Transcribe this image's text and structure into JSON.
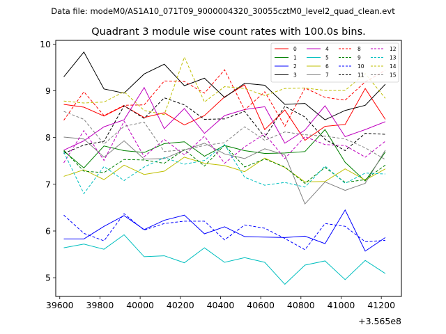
{
  "header": {
    "data_file": "Data file: modeM0/AS1A10_071T09_9000004320_30055cztM0_level2_quad_clean.evt"
  },
  "chart_data": {
    "type": "line",
    "title": "Quadrant 3 module wise count rates with 100.0s bins.",
    "xlabel": "",
    "ylabel": "",
    "x_offset_label": "+3.565e8",
    "xlim": [
      39580,
      41300
    ],
    "ylim": [
      4.6,
      10.08
    ],
    "xticks": [
      39600,
      39800,
      40000,
      40200,
      40400,
      40600,
      40800,
      41000,
      41200
    ],
    "yticks": [
      5,
      6,
      7,
      8,
      9,
      10
    ],
    "grid": false,
    "legend_placement": "top-right",
    "legend_columns": 4,
    "x": [
      39620,
      39720,
      39820,
      39920,
      40020,
      40120,
      40220,
      40320,
      40420,
      40520,
      40620,
      40720,
      40820,
      40920,
      41020,
      41120,
      41220
    ],
    "series": [
      {
        "name": "0",
        "color": "#ff0000",
        "dash": "solid",
        "values": [
          8.71,
          8.65,
          8.46,
          8.68,
          8.43,
          8.53,
          8.27,
          8.47,
          8.87,
          9.13,
          8.17,
          8.59,
          7.94,
          8.24,
          8.28,
          9.05,
          8.39
        ]
      },
      {
        "name": "1",
        "color": "#008000",
        "dash": "solid",
        "values": [
          7.71,
          7.35,
          7.82,
          7.72,
          7.68,
          7.87,
          7.91,
          7.6,
          7.83,
          7.72,
          7.66,
          7.67,
          7.7,
          8.17,
          7.47,
          7.07,
          7.69
        ]
      },
      {
        "name": "2",
        "color": "#0000ff",
        "dash": "solid",
        "values": [
          5.83,
          5.83,
          6.1,
          6.33,
          6.03,
          6.23,
          6.34,
          5.94,
          6.09,
          5.88,
          5.87,
          5.86,
          5.89,
          5.73,
          6.45,
          5.57,
          5.86
        ]
      },
      {
        "name": "3",
        "color": "#000000",
        "dash": "solid",
        "values": [
          9.3,
          9.83,
          9.04,
          8.95,
          9.36,
          9.57,
          9.11,
          9.27,
          8.86,
          9.16,
          9.12,
          8.71,
          8.73,
          8.38,
          8.58,
          8.69,
          9.14
        ]
      },
      {
        "name": "4",
        "color": "#bf00bf",
        "dash": "solid",
        "values": [
          7.73,
          7.93,
          8.23,
          8.38,
          9.07,
          8.19,
          8.62,
          8.09,
          8.47,
          8.6,
          8.66,
          7.88,
          8.16,
          8.68,
          8.02,
          8.17,
          8.34
        ]
      },
      {
        "name": "5",
        "color": "#00bfbf",
        "dash": "solid",
        "values": [
          5.64,
          5.72,
          5.61,
          5.92,
          5.45,
          5.47,
          5.32,
          5.64,
          5.33,
          5.43,
          5.33,
          4.86,
          5.27,
          5.36,
          4.96,
          5.37,
          5.09
        ]
      },
      {
        "name": "6",
        "color": "#bfbf00",
        "dash": "solid",
        "values": [
          7.17,
          7.31,
          7.1,
          7.41,
          7.21,
          7.28,
          7.58,
          7.45,
          7.4,
          7.27,
          7.56,
          7.36,
          7.05,
          7.06,
          7.33,
          7.09,
          7.33
        ]
      },
      {
        "name": "7",
        "color": "#808080",
        "dash": "solid",
        "values": [
          8.01,
          7.97,
          7.58,
          7.93,
          7.54,
          7.55,
          7.73,
          7.88,
          7.65,
          7.55,
          7.76,
          7.63,
          6.58,
          7.05,
          6.87,
          7.02,
          7.73
        ]
      },
      {
        "name": "8",
        "color": "#ff0000",
        "dash": "dashed",
        "values": [
          8.37,
          8.98,
          8.47,
          8.69,
          8.7,
          9.21,
          9.2,
          8.95,
          9.45,
          8.59,
          8.98,
          8.24,
          9.06,
          8.86,
          8.8,
          9.19,
          9.44
        ]
      },
      {
        "name": "9",
        "color": "#008000",
        "dash": "dashed",
        "values": [
          7.73,
          7.28,
          7.25,
          7.53,
          7.52,
          7.45,
          7.74,
          7.39,
          7.84,
          7.37,
          7.54,
          7.37,
          7.02,
          7.36,
          7.04,
          7.1,
          7.41
        ]
      },
      {
        "name": "10",
        "color": "#0000ff",
        "dash": "dashed",
        "values": [
          6.34,
          5.95,
          5.79,
          6.37,
          6.02,
          6.16,
          6.21,
          6.21,
          5.81,
          6.13,
          6.06,
          5.84,
          5.6,
          6.16,
          6.1,
          5.77,
          5.8
        ]
      },
      {
        "name": "11",
        "color": "#000000",
        "dash": "dashed",
        "values": [
          7.66,
          7.84,
          7.92,
          8.68,
          8.41,
          8.85,
          8.7,
          8.39,
          8.4,
          8.56,
          8.01,
          8.67,
          8.44,
          7.96,
          7.72,
          8.09,
          8.07
        ]
      },
      {
        "name": "12",
        "color": "#bf00bf",
        "dash": "dashed",
        "values": [
          7.46,
          8.15,
          7.51,
          8.35,
          7.59,
          7.96,
          7.63,
          8.03,
          7.45,
          7.8,
          8.08,
          7.55,
          8.02,
          7.85,
          7.83,
          7.58,
          7.92
        ]
      },
      {
        "name": "13",
        "color": "#00bfbf",
        "dash": "dashed",
        "values": [
          7.69,
          6.8,
          7.38,
          7.08,
          7.37,
          7.57,
          7.43,
          7.51,
          7.85,
          7.15,
          6.98,
          7.04,
          6.94,
          7.39,
          7.02,
          7.24,
          7.22
        ]
      },
      {
        "name": "14",
        "color": "#bfbf00",
        "dash": "dashed",
        "values": [
          8.78,
          8.74,
          8.76,
          8.98,
          8.58,
          8.49,
          9.72,
          8.76,
          9.09,
          9.05,
          8.9,
          9.05,
          9.06,
          9.01,
          9.01,
          9.37,
          8.84
        ]
      },
      {
        "name": "15",
        "color": "#808080",
        "dash": "dashed",
        "values": [
          8.56,
          8.39,
          7.86,
          8.24,
          8.33,
          7.7,
          7.74,
          7.83,
          7.89,
          8.23,
          7.94,
          8.12,
          8.06,
          8.03,
          7.97,
          7.78,
          7.53
        ]
      }
    ]
  }
}
